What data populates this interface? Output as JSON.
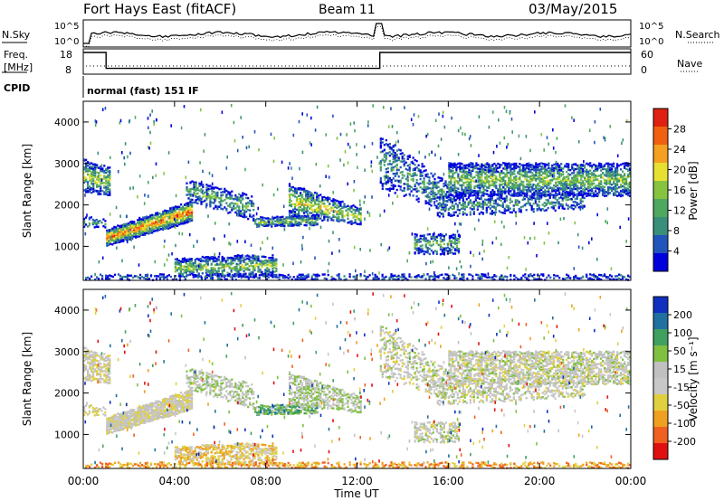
{
  "header": {
    "station": "Fort Hays East (fitACF)",
    "beam": "Beam 11",
    "date": "03/May/2015"
  },
  "panel_labels": {
    "nsky": "N.Sky",
    "nsearch": "N.Search",
    "freq_line1": "Freq.",
    "freq_line2": "[MHz]",
    "nave": "Nave",
    "cpid": "CPID",
    "cpid_text": "normal (fast) 151 IF"
  },
  "colors": {
    "power_scale": [
      "#0000dd",
      "#2255bb",
      "#3a8f7a",
      "#4fa860",
      "#86c440",
      "#e8e030",
      "#f5a020",
      "#f06010",
      "#e02010"
    ],
    "velocity_scale": [
      "#e01010",
      "#f06020",
      "#f0a020",
      "#e0d040",
      "#c8c8c8",
      "#c0c0c0",
      "#80c040",
      "#40a060",
      "#2070a0",
      "#1030c0"
    ]
  },
  "chart_data": [
    {
      "type": "line",
      "name": "noise-panel",
      "x": [
        0,
        24
      ],
      "left_ticks": [
        "10^5",
        "10^0"
      ],
      "right_ticks": [
        "10^5",
        "10^0"
      ]
    },
    {
      "type": "line",
      "name": "freq-nave-panel",
      "left_ticks": [
        "18",
        "8"
      ],
      "right_ticks": [
        "60",
        "0"
      ],
      "freq_mhz": {
        "x": [
          0,
          1,
          1,
          13,
          13,
          24
        ],
        "y": [
          18,
          18,
          10,
          10,
          18,
          18
        ]
      }
    },
    {
      "type": "heatmap",
      "name": "power",
      "ylabel": "Slant Range [km]",
      "colorbar_label": "Power [dB]",
      "colorbar_ticks": [
        "28",
        "24",
        "20",
        "16",
        "12",
        "8",
        "4"
      ],
      "xlim": [
        0,
        24
      ],
      "ylim": [
        180,
        4500
      ],
      "yticks": [
        "1000",
        "2000",
        "3000",
        "4000"
      ]
    },
    {
      "type": "heatmap",
      "name": "velocity",
      "ylabel": "Slant Range [km]",
      "xlabel": "Time UT",
      "colorbar_label": "Velocity [m s⁻¹]",
      "colorbar_ticks": [
        "200",
        "100",
        "50",
        "15",
        "-15",
        "-50",
        "-100",
        "-200"
      ],
      "xlim": [
        0,
        24
      ],
      "ylim": [
        180,
        4500
      ],
      "yticks": [
        "1000",
        "2000",
        "3000",
        "4000"
      ],
      "xticks": [
        "00:00",
        "04:00",
        "08:00",
        "12:00",
        "16:00",
        "20:00",
        "00:00"
      ]
    }
  ]
}
